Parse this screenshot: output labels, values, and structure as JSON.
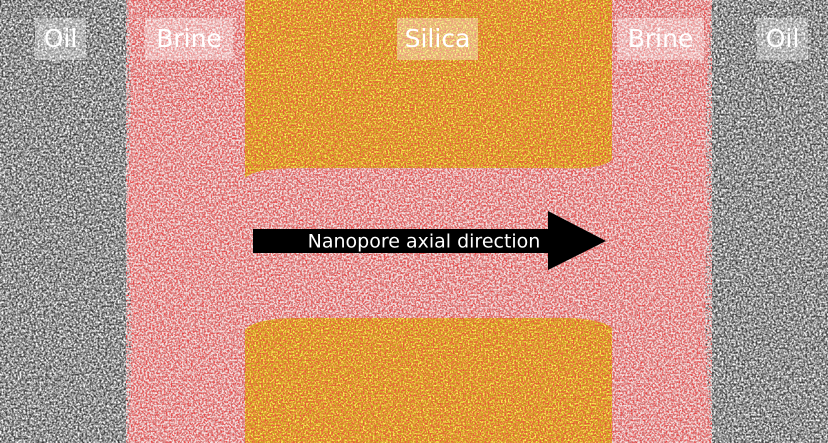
{
  "header": {
    "region_labels": [
      "Oil",
      "Brine",
      "Silica",
      "Brine",
      "Oil"
    ]
  },
  "arrow": {
    "label": "Nanopore axial direction"
  }
}
